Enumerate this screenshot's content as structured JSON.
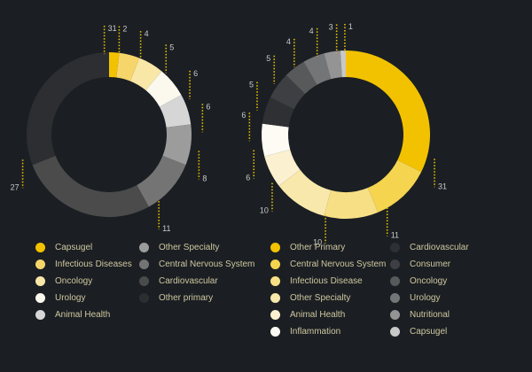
{
  "chart_data": [
    {
      "type": "pie",
      "donut": true,
      "slices": [
        {
          "label": "Capsugel",
          "value": 2,
          "color": "#f2c200"
        },
        {
          "label": "Infectious Diseases",
          "value": 4,
          "color": "#f6d66a"
        },
        {
          "label": "Oncology",
          "value": 5,
          "color": "#f9e7a8"
        },
        {
          "label": "Urology",
          "value": 6,
          "color": "#fbf8ee"
        },
        {
          "label": "Animal Health",
          "value": 6,
          "color": "#d6d6d6"
        },
        {
          "label": "Other Specialty",
          "value": 8,
          "color": "#9c9c9c"
        },
        {
          "label": "Central Nervous System",
          "value": 11,
          "color": "#747474"
        },
        {
          "label": "Cardiovascular",
          "value": 27,
          "color": "#4b4b4b"
        },
        {
          "label": "Other primary",
          "value": 31,
          "color": "#2c2e31"
        }
      ]
    },
    {
      "type": "pie",
      "donut": true,
      "slices": [
        {
          "label": "Other Primary",
          "value": 31,
          "color": "#f2c200"
        },
        {
          "label": "Central Nervous System",
          "value": 11,
          "color": "#f5d44f"
        },
        {
          "label": "Infectious Disease",
          "value": 10,
          "color": "#f7df85"
        },
        {
          "label": "Other Specialty",
          "value": 10,
          "color": "#f9e8ab"
        },
        {
          "label": "Animal Health",
          "value": 6,
          "color": "#fbf0cf"
        },
        {
          "label": "Inflammation",
          "value": 6,
          "color": "#fdfbf4"
        },
        {
          "label": "Cardiovascular",
          "value": 5,
          "color": "#2e3033"
        },
        {
          "label": "Consumer",
          "value": 5,
          "color": "#3d3f42"
        },
        {
          "label": "Oncology",
          "value": 4,
          "color": "#58595b"
        },
        {
          "label": "Urology",
          "value": 4,
          "color": "#747576"
        },
        {
          "label": "Nutritional",
          "value": 3,
          "color": "#949494"
        },
        {
          "label": "Capsugel",
          "value": 1,
          "color": "#c8c8c8"
        }
      ]
    }
  ]
}
